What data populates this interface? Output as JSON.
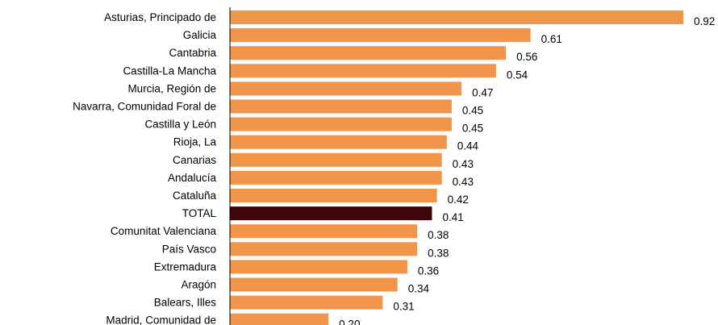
{
  "chart_data": {
    "type": "bar",
    "orientation": "horizontal",
    "categories": [
      "Asturias, Principado de",
      "Galicia",
      "Cantabria",
      "Castilla-La Mancha",
      "Murcia, Región de",
      "Navarra, Comunidad Foral de",
      "Castilla y León",
      "Rioja, La",
      "Canarias",
      "Andalucía",
      "Cataluña",
      "TOTAL",
      "Comunitat Valenciana",
      "País Vasco",
      "Extremadura",
      "Aragón",
      "Balears, Illes",
      "Madrid, Comunidad de"
    ],
    "values": [
      0.92,
      0.61,
      0.56,
      0.54,
      0.47,
      0.45,
      0.45,
      0.44,
      0.43,
      0.43,
      0.42,
      0.41,
      0.38,
      0.38,
      0.36,
      0.34,
      0.31,
      0.2
    ],
    "value_labels": [
      "0.92",
      "0.61",
      "0.56",
      "0.54",
      "0.47",
      "0.45",
      "0.45",
      "0.44",
      "0.43",
      "0.43",
      "0.42",
      "0.41",
      "0.38",
      "0.38",
      "0.36",
      "0.34",
      "0.31",
      "0.20"
    ],
    "highlight_category": "TOTAL",
    "colors": {
      "bar": "#f0954a",
      "highlight": "#3d0608",
      "axis": "#000000"
    },
    "xlim": [
      0,
      0.92
    ],
    "grid": false,
    "legend": "none",
    "title": "",
    "xlabel": "",
    "ylabel": ""
  }
}
